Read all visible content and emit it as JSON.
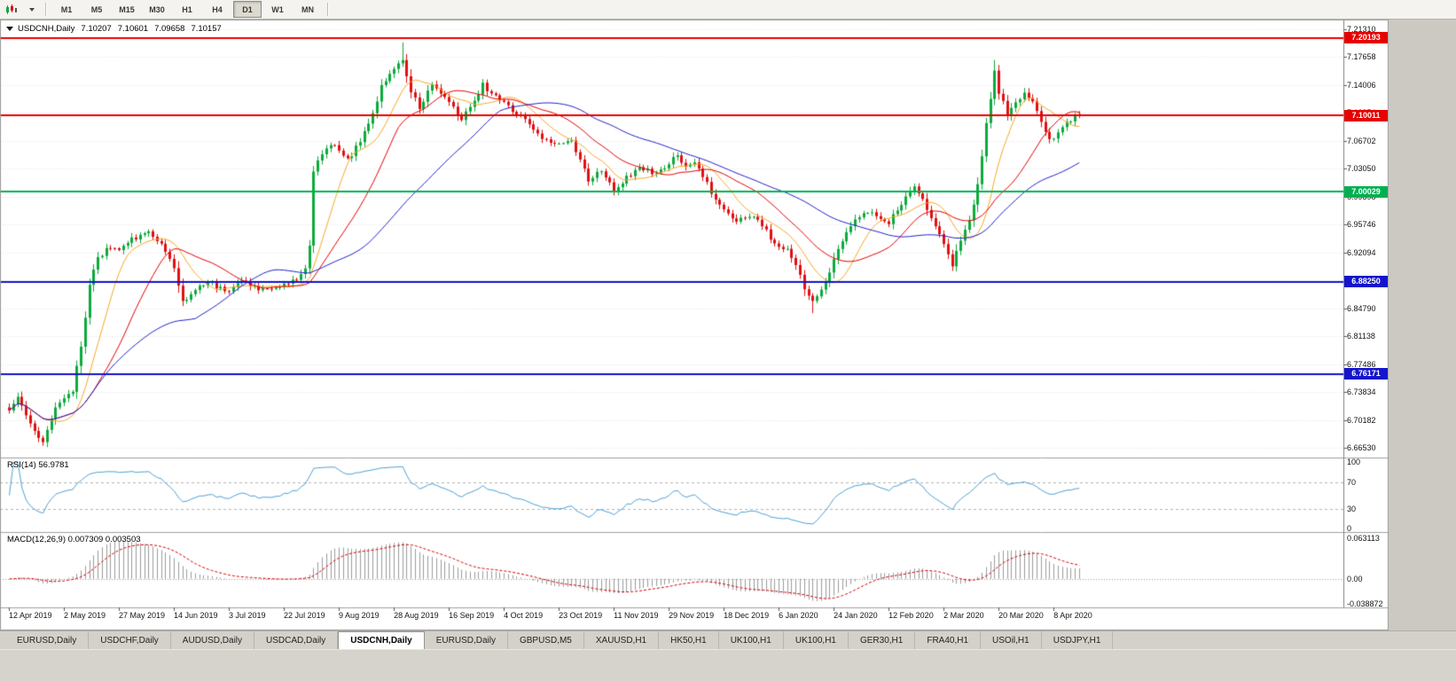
{
  "toolbar": {
    "timeframes": [
      "M1",
      "M5",
      "M15",
      "M30",
      "H1",
      "H4",
      "D1",
      "W1",
      "MN"
    ],
    "active_timeframe": "D1"
  },
  "chart": {
    "title": {
      "symbol": "USDCNH,Daily",
      "open": "7.10207",
      "high": "7.10601",
      "low": "7.09658",
      "close": "7.10157"
    },
    "price_axis": {
      "ticks": [
        {
          "label": "7.21310",
          "value": 7.2131
        },
        {
          "label": "7.17658",
          "value": 7.17658
        },
        {
          "label": "7.14006",
          "value": 7.14006
        },
        {
          "label": "7.10354",
          "value": 7.10354
        },
        {
          "label": "7.06702",
          "value": 7.06702
        },
        {
          "label": "7.03050",
          "value": 7.0305
        },
        {
          "label": "6.99398",
          "value": 6.99398
        },
        {
          "label": "6.95746",
          "value": 6.95746
        },
        {
          "label": "6.92094",
          "value": 6.92094
        },
        {
          "label": "6.88442",
          "value": 6.88442
        },
        {
          "label": "6.84790",
          "value": 6.8479
        },
        {
          "label": "6.81138",
          "value": 6.81138
        },
        {
          "label": "6.77486",
          "value": 6.77486
        },
        {
          "label": "6.73834",
          "value": 6.73834
        },
        {
          "label": "6.70182",
          "value": 6.70182
        },
        {
          "label": "6.66530",
          "value": 6.6653
        }
      ]
    },
    "hlines": [
      {
        "label": "7.20193",
        "value": 7.20193,
        "color": "#e60000"
      },
      {
        "label": "7.10011",
        "value": 7.10011,
        "color": "#e60000"
      },
      {
        "label": "7.00029",
        "value": 7.00029,
        "color": "#00b050"
      },
      {
        "label": "6.88250",
        "value": 6.8825,
        "color": "#1414cc"
      },
      {
        "label": "6.76171",
        "value": 6.76171,
        "color": "#1414cc"
      }
    ],
    "date_axis": {
      "labels": [
        "12 Apr 2019",
        "2 May 2019",
        "27 May 2019",
        "14 Jun 2019",
        "3 Jul 2019",
        "22 Jul 2019",
        "9 Aug 2019",
        "28 Aug 2019",
        "16 Sep 2019",
        "4 Oct 2019",
        "23 Oct 2019",
        "11 Nov 2019",
        "29 Nov 2019",
        "18 Dec 2019",
        "6 Jan 2020",
        "24 Jan 2020",
        "12 Feb 2020",
        "2 Mar 2020",
        "20 Mar 2020",
        "8 Apr 2020"
      ]
    }
  },
  "rsi_panel": {
    "title": "RSI(14)",
    "value": "56.9781",
    "scale": [
      {
        "label": "100",
        "value": 100
      },
      {
        "label": "70",
        "value": 70
      },
      {
        "label": "30",
        "value": 30
      },
      {
        "label": "0",
        "value": 0
      }
    ]
  },
  "macd_panel": {
    "title": "MACD(12,26,9)",
    "values": "0.007309 0.003503",
    "scale": [
      {
        "label": "0.063113",
        "value": 0.063113
      },
      {
        "label": "0.00",
        "value": 0
      },
      {
        "label": "-0.038872",
        "value": -0.038872
      }
    ]
  },
  "tabs": {
    "active_index": 4,
    "items": [
      {
        "label": "EURUSD,Daily"
      },
      {
        "label": "USDCHF,Daily"
      },
      {
        "label": "AUDUSD,Daily"
      },
      {
        "label": "USDCAD,Daily"
      },
      {
        "label": "USDCNH,Daily"
      },
      {
        "label": "EURUSD,Daily"
      },
      {
        "label": "GBPUSD,M5"
      },
      {
        "label": "XAUUSD,H1"
      },
      {
        "label": "HK50,H1"
      },
      {
        "label": "UK100,H1"
      },
      {
        "label": "UK100,H1"
      },
      {
        "label": "GER30,H1"
      },
      {
        "label": "FRA40,H1"
      },
      {
        "label": "USOil,H1"
      },
      {
        "label": "USDJPY,H1"
      }
    ]
  },
  "ui_colors": {
    "toolbar_bg": "#f4f3f0",
    "mdi_bg": "#ccc9c2",
    "tab_bg": "#d4d1ca",
    "active_tab_bg": "#ffffff",
    "grid": "#e3e3e3",
    "panel_border": "#a0a0a0",
    "scale_sep": "#808080"
  },
  "chart_data": {
    "type": "candlestick",
    "symbol": "USDCNH",
    "timeframe": "Daily",
    "ohlc_display": {
      "open": 7.10207,
      "high": 7.10601,
      "low": 7.09658,
      "close": 7.10157
    },
    "n_candles": 254,
    "candles_per_date_label": 13,
    "price_range": [
      6.6653,
      7.2131
    ],
    "up_color": "#0caa3c",
    "down_color": "#e01010",
    "close_anchors": [
      [
        0,
        6.712
      ],
      [
        2,
        6.731
      ],
      [
        5,
        6.696
      ],
      [
        8,
        6.673
      ],
      [
        11,
        6.716
      ],
      [
        13,
        6.733
      ],
      [
        15,
        6.739
      ],
      [
        17,
        6.8
      ],
      [
        19,
        6.878
      ],
      [
        21,
        6.912
      ],
      [
        24,
        6.93
      ],
      [
        26,
        6.925
      ],
      [
        29,
        6.939
      ],
      [
        33,
        6.947
      ],
      [
        36,
        6.934
      ],
      [
        39,
        6.9
      ],
      [
        41,
        6.856
      ],
      [
        44,
        6.872
      ],
      [
        47,
        6.882
      ],
      [
        50,
        6.874
      ],
      [
        52,
        6.872
      ],
      [
        55,
        6.881
      ],
      [
        58,
        6.876
      ],
      [
        61,
        6.873
      ],
      [
        65,
        6.879
      ],
      [
        68,
        6.886
      ],
      [
        70,
        6.898
      ],
      [
        71,
        6.932
      ],
      [
        72,
        7.029
      ],
      [
        74,
        7.052
      ],
      [
        76,
        7.061
      ],
      [
        78,
        7.056
      ],
      [
        80,
        7.041
      ],
      [
        82,
        7.058
      ],
      [
        85,
        7.088
      ],
      [
        88,
        7.138
      ],
      [
        91,
        7.161
      ],
      [
        93,
        7.176
      ],
      [
        95,
        7.131
      ],
      [
        97,
        7.112
      ],
      [
        100,
        7.139
      ],
      [
        102,
        7.128
      ],
      [
        104,
        7.119
      ],
      [
        107,
        7.096
      ],
      [
        110,
        7.119
      ],
      [
        112,
        7.141
      ],
      [
        114,
        7.128
      ],
      [
        117,
        7.119
      ],
      [
        120,
        7.101
      ],
      [
        123,
        7.092
      ],
      [
        126,
        7.071
      ],
      [
        130,
        7.063
      ],
      [
        133,
        7.069
      ],
      [
        135,
        7.041
      ],
      [
        137,
        7.016
      ],
      [
        140,
        7.029
      ],
      [
        143,
        7.001
      ],
      [
        146,
        7.019
      ],
      [
        149,
        7.034
      ],
      [
        152,
        7.024
      ],
      [
        156,
        7.036
      ],
      [
        158,
        7.049
      ],
      [
        160,
        7.031
      ],
      [
        162,
        7.039
      ],
      [
        164,
        7.019
      ],
      [
        166,
        7.001
      ],
      [
        169,
        6.976
      ],
      [
        172,
        6.961
      ],
      [
        175,
        6.969
      ],
      [
        178,
        6.956
      ],
      [
        180,
        6.941
      ],
      [
        182,
        6.931
      ],
      [
        184,
        6.924
      ],
      [
        186,
        6.901
      ],
      [
        188,
        6.876
      ],
      [
        190,
        6.856
      ],
      [
        192,
        6.869
      ],
      [
        195,
        6.911
      ],
      [
        197,
        6.936
      ],
      [
        200,
        6.964
      ],
      [
        203,
        6.976
      ],
      [
        206,
        6.966
      ],
      [
        208,
        6.961
      ],
      [
        210,
        6.979
      ],
      [
        212,
        6.994
      ],
      [
        214,
        7.004
      ],
      [
        216,
        6.991
      ],
      [
        218,
        6.966
      ],
      [
        221,
        6.931
      ],
      [
        223,
        6.906
      ],
      [
        225,
        6.934
      ],
      [
        227,
        6.964
      ],
      [
        229,
        7.009
      ],
      [
        231,
        7.088
      ],
      [
        233,
        7.159
      ],
      [
        234,
        7.131
      ],
      [
        236,
        7.101
      ],
      [
        238,
        7.119
      ],
      [
        240,
        7.129
      ],
      [
        242,
        7.116
      ],
      [
        244,
        7.091
      ],
      [
        246,
        7.071
      ],
      [
        247,
        7.069
      ],
      [
        249,
        7.084
      ],
      [
        251,
        7.094
      ],
      [
        253,
        7.10157
      ]
    ],
    "last_candle": {
      "o": 7.10207,
      "h": 7.10601,
      "l": 7.09658,
      "c": 7.10157
    },
    "spike_adjustments": [
      {
        "i": 93,
        "high": 7.1958
      },
      {
        "i": 190,
        "low": 6.8415
      },
      {
        "i": 233,
        "high": 7.173
      }
    ],
    "moving_averages": [
      {
        "period": 10,
        "color": "#f7a928"
      },
      {
        "period": 21,
        "color": "#e80000"
      },
      {
        "period": 45,
        "color": "#2222cc"
      }
    ],
    "rsi": {
      "period": 14,
      "value": 56.9781,
      "color": "#4da0d8",
      "levels": [
        70,
        30
      ],
      "range": [
        0,
        100
      ]
    },
    "macd": {
      "fast": 12,
      "slow": 26,
      "signal": 9,
      "value": 0.007309,
      "signal_value": 0.003503,
      "range": [
        -0.038872,
        0.063113
      ],
      "histogram_color": "#9b9b9b",
      "signal_color": "#d40000"
    }
  }
}
